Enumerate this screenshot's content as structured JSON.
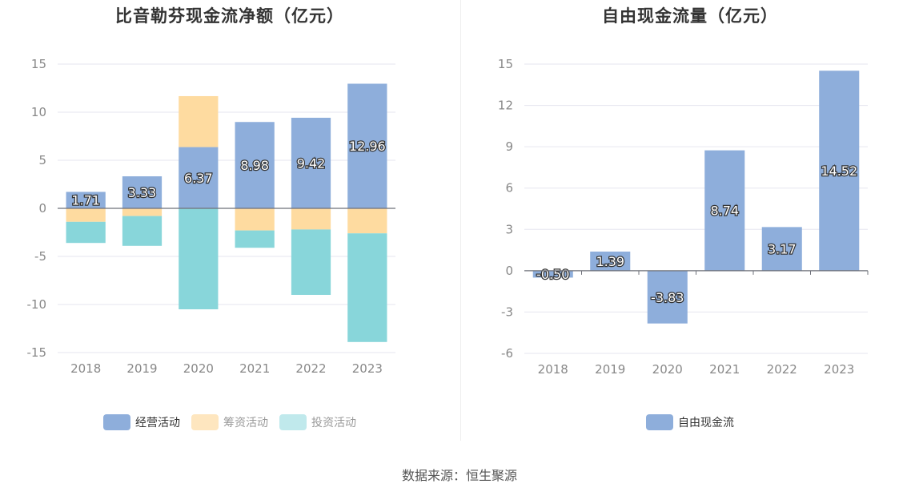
{
  "colors": {
    "operating": "#8eaedb",
    "financing": "#fedba0",
    "investing": "#88d6da",
    "free_cash_flow": "#8eaedb"
  },
  "source": "数据来源：恒生聚源",
  "chart_data": [
    {
      "type": "bar",
      "title": "比音勒芬现金流净额（亿元）",
      "categories": [
        "2018",
        "2019",
        "2020",
        "2021",
        "2022",
        "2023"
      ],
      "stacked": true,
      "ylim": [
        -15,
        15
      ],
      "yticks": [
        15,
        10,
        5,
        0,
        -5,
        -10,
        -15
      ],
      "grid": true,
      "legend_position": "bottom",
      "series": [
        {
          "name": "经营活动",
          "values": [
            1.71,
            3.33,
            6.37,
            8.98,
            9.42,
            12.96
          ],
          "labels": [
            "1.71",
            "3.33",
            "6.37",
            "8.98",
            "9.42",
            "12.96"
          ]
        },
        {
          "name": "筹资活动",
          "values": [
            -1.4,
            -0.8,
            5.3,
            -2.3,
            -2.2,
            -2.6
          ]
        },
        {
          "name": "投资活动",
          "values": [
            -2.2,
            -3.1,
            -10.5,
            -1.8,
            -6.8,
            -11.3
          ]
        }
      ]
    },
    {
      "type": "bar",
      "title": "自由现金流量（亿元）",
      "categories": [
        "2018",
        "2019",
        "2020",
        "2021",
        "2022",
        "2023"
      ],
      "ylim": [
        -6,
        15
      ],
      "yticks": [
        15,
        12,
        9,
        6,
        3,
        0,
        -3,
        -6
      ],
      "grid": true,
      "legend_position": "bottom",
      "series": [
        {
          "name": "自由现金流",
          "values": [
            -0.5,
            1.39,
            -3.83,
            8.74,
            3.17,
            14.52
          ],
          "labels": [
            "-0.50",
            "1.39",
            "-3.83",
            "8.74",
            "3.17",
            "14.52"
          ]
        }
      ]
    }
  ]
}
